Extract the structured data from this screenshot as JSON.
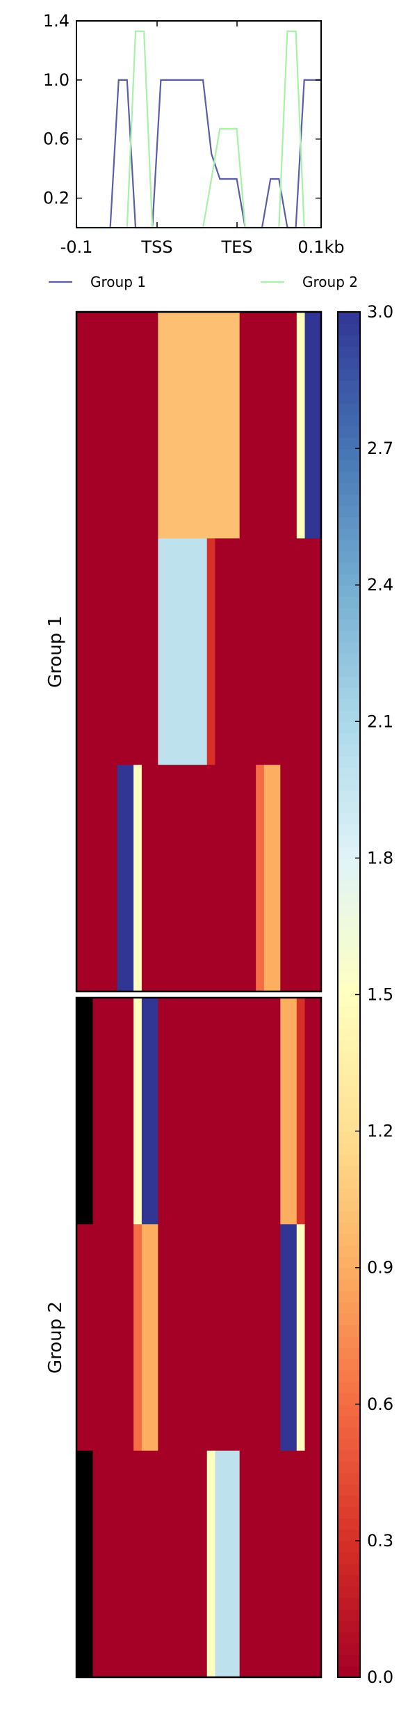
{
  "chart_data": [
    {
      "type": "line",
      "title": "",
      "xlabel": "",
      "ylabel": "",
      "x_tick_labels": [
        "-0.1",
        "TSS",
        "TES",
        "0.1kb"
      ],
      "y_ticks": [
        0.2,
        0.6,
        1.0,
        1.4
      ],
      "y_tick_labels": [
        "0.2",
        "0.6",
        "1.0",
        "1.4"
      ],
      "ylim": [
        0.0,
        1.4
      ],
      "xlim": [
        0,
        30
      ],
      "legend_position": "below",
      "series": [
        {
          "name": "Group 1",
          "color": "#5b5ea6",
          "values": [
            0,
            0,
            0,
            0,
            0,
            1,
            1,
            0,
            0,
            0,
            1,
            1,
            1,
            1,
            1,
            1,
            0.5,
            0.33,
            0.33,
            0.33,
            0,
            0,
            0,
            0.33,
            0.33,
            0,
            0,
            1,
            1,
            1
          ]
        },
        {
          "name": "Group 2",
          "color": "#a9f0a9",
          "values": [
            0,
            0,
            0,
            0,
            0,
            0,
            0,
            1.33,
            1.33,
            0,
            0,
            0,
            0,
            0,
            0,
            0,
            0.33,
            0.67,
            0.67,
            0.67,
            0,
            0,
            0,
            0,
            0,
            1.33,
            1.33,
            0,
            0,
            0
          ]
        }
      ]
    },
    {
      "type": "heatmap",
      "colormap": "RdYlBu",
      "value_range": [
        0.0,
        3.0
      ],
      "n_columns": 30,
      "groups": [
        {
          "label": "Group 1",
          "rows": [
            {
              "segments": [
                [
                  0,
                  10,
                  0.0
                ],
                [
                  10,
                  20,
                  1.0
                ],
                [
                  20,
                  27,
                  0.0
                ],
                [
                  27,
                  28,
                  1.5
                ],
                [
                  28,
                  30,
                  3.0
                ]
              ]
            },
            {
              "segments": [
                [
                  0,
                  10,
                  0.0
                ],
                [
                  10,
                  16,
                  2.0
                ],
                [
                  16,
                  17,
                  0.3
                ],
                [
                  17,
                  30,
                  0.0
                ]
              ]
            },
            {
              "segments": [
                [
                  0,
                  5,
                  0.0
                ],
                [
                  5,
                  7,
                  3.0
                ],
                [
                  7,
                  8,
                  1.5
                ],
                [
                  8,
                  22,
                  0.0
                ],
                [
                  22,
                  23,
                  0.6
                ],
                [
                  23,
                  25,
                  0.9
                ],
                [
                  25,
                  30,
                  0.0
                ]
              ]
            }
          ]
        },
        {
          "label": "Group 2",
          "rows": [
            {
              "nan_first_col": true,
              "segments": [
                [
                  0,
                  2,
                  0.0
                ],
                [
                  2,
                  7,
                  0.0
                ],
                [
                  7,
                  8,
                  1.5
                ],
                [
                  8,
                  10,
                  3.0
                ],
                [
                  10,
                  25,
                  0.0
                ],
                [
                  25,
                  27,
                  0.9
                ],
                [
                  27,
                  28,
                  0.3
                ],
                [
                  28,
                  30,
                  0.0
                ]
              ]
            },
            {
              "segments": [
                [
                  0,
                  7,
                  0.0
                ],
                [
                  7,
                  8,
                  0.6
                ],
                [
                  8,
                  10,
                  0.9
                ],
                [
                  10,
                  25,
                  0.0
                ],
                [
                  25,
                  27,
                  3.0
                ],
                [
                  27,
                  28,
                  1.5
                ],
                [
                  28,
                  30,
                  0.0
                ]
              ]
            },
            {
              "nan_first_col": true,
              "segments": [
                [
                  0,
                  2,
                  0.0
                ],
                [
                  2,
                  16,
                  0.0
                ],
                [
                  16,
                  17,
                  1.5
                ],
                [
                  17,
                  20,
                  2.0
                ],
                [
                  20,
                  30,
                  0.0
                ]
              ]
            }
          ]
        }
      ],
      "colorbar_ticks": [
        0.0,
        0.3,
        0.6,
        0.9,
        1.2,
        1.5,
        1.8,
        2.1,
        2.4,
        2.7,
        3.0
      ],
      "colorbar_tick_labels": [
        "0.0",
        "0.3",
        "0.6",
        "0.9",
        "1.2",
        "1.5",
        "1.8",
        "2.1",
        "2.4",
        "2.7",
        "3.0"
      ]
    }
  ]
}
